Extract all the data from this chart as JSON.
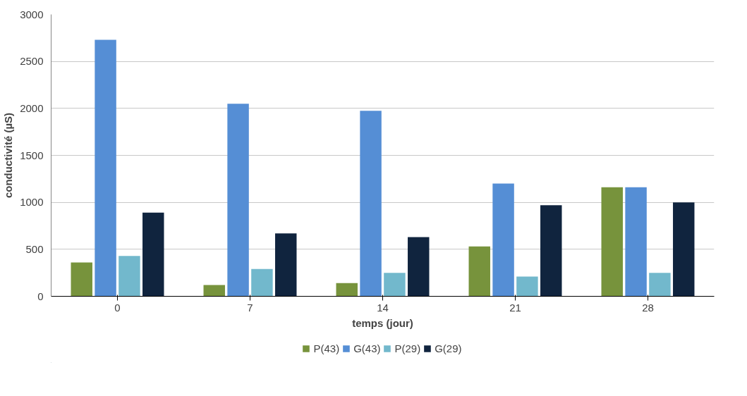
{
  "chart_data": {
    "type": "bar",
    "xlabel": "temps (jour)",
    "ylabel": "conductivité (µS)",
    "categories": [
      "0",
      "7",
      "14",
      "21",
      "28"
    ],
    "series": [
      {
        "name": "P(43)",
        "color": "#77933c",
        "values": [
          360,
          120,
          140,
          530,
          1160
        ]
      },
      {
        "name": "G(43)",
        "color": "#558ed5",
        "values": [
          2730,
          2050,
          1975,
          1200,
          1160
        ]
      },
      {
        "name": "P(29)",
        "color": "#72b8cc",
        "values": [
          430,
          290,
          250,
          210,
          250
        ]
      },
      {
        "name": "G(29)",
        "color": "#10243e",
        "values": [
          890,
          670,
          630,
          970,
          1000
        ]
      }
    ],
    "ylim": [
      0,
      3000
    ],
    "yticks": [
      0,
      500,
      1000,
      1500,
      2000,
      2500,
      3000
    ],
    "grid": "y",
    "legend": "bottom"
  }
}
